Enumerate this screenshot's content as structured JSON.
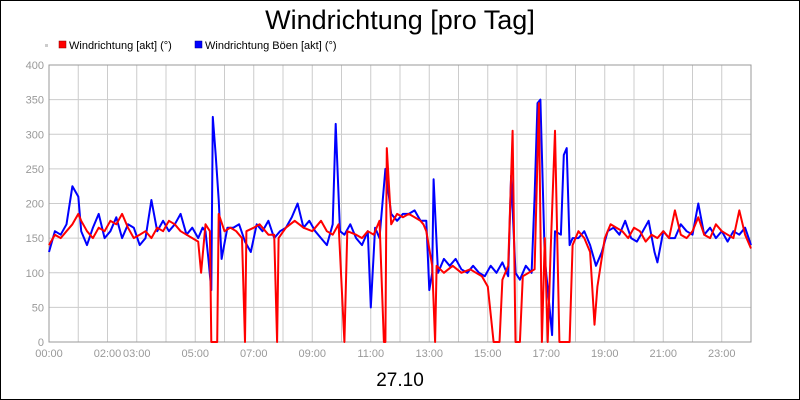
{
  "chart_data": {
    "type": "line",
    "title": "Windrichtung [pro Tag]",
    "xlabel": "27.10",
    "ylabel": "",
    "ylim": [
      0,
      400
    ],
    "yticks": [
      0,
      50,
      100,
      150,
      200,
      250,
      300,
      350,
      400
    ],
    "xticks": [
      {
        "h": 0,
        "label": "00:00"
      },
      {
        "h": 2,
        "label": "02:00"
      },
      {
        "h": 3,
        "label": "03:00"
      },
      {
        "h": 5,
        "label": "05:00"
      },
      {
        "h": 7,
        "label": "07:00"
      },
      {
        "h": 9,
        "label": "09:00"
      },
      {
        "h": 11,
        "label": "11:00"
      },
      {
        "h": 13,
        "label": "13:00"
      },
      {
        "h": 15,
        "label": "15:00"
      },
      {
        "h": 17,
        "label": "17:00"
      },
      {
        "h": 19,
        "label": "19:00"
      },
      {
        "h": 21,
        "label": "21:00"
      },
      {
        "h": 23,
        "label": "23:00"
      }
    ],
    "xlim": [
      0,
      24
    ],
    "grid": true,
    "legend_position": "top-left",
    "series": [
      {
        "name": "Windrichtung [akt] (°)",
        "color": "#ff0000",
        "points": [
          [
            0.0,
            140
          ],
          [
            0.2,
            155
          ],
          [
            0.4,
            150
          ],
          [
            0.6,
            160
          ],
          [
            0.8,
            170
          ],
          [
            1.0,
            185
          ],
          [
            1.1,
            175
          ],
          [
            1.3,
            160
          ],
          [
            1.5,
            150
          ],
          [
            1.7,
            165
          ],
          [
            1.9,
            160
          ],
          [
            2.1,
            175
          ],
          [
            2.3,
            170
          ],
          [
            2.5,
            185
          ],
          [
            2.7,
            165
          ],
          [
            2.9,
            150
          ],
          [
            3.1,
            155
          ],
          [
            3.3,
            160
          ],
          [
            3.5,
            150
          ],
          [
            3.7,
            165
          ],
          [
            3.9,
            160
          ],
          [
            4.1,
            175
          ],
          [
            4.3,
            170
          ],
          [
            4.5,
            160
          ],
          [
            4.7,
            155
          ],
          [
            4.9,
            150
          ],
          [
            5.1,
            145
          ],
          [
            5.2,
            100
          ],
          [
            5.35,
            170
          ],
          [
            5.5,
            160
          ],
          [
            5.55,
            0
          ],
          [
            5.75,
            0
          ],
          [
            5.8,
            185
          ],
          [
            6.0,
            160
          ],
          [
            6.2,
            165
          ],
          [
            6.4,
            160
          ],
          [
            6.6,
            150
          ],
          [
            6.7,
            0
          ],
          [
            6.75,
            160
          ],
          [
            7.0,
            165
          ],
          [
            7.2,
            170
          ],
          [
            7.5,
            155
          ],
          [
            7.7,
            155
          ],
          [
            7.8,
            0
          ],
          [
            7.85,
            150
          ],
          [
            8.1,
            165
          ],
          [
            8.4,
            175
          ],
          [
            8.7,
            165
          ],
          [
            9.0,
            160
          ],
          [
            9.3,
            175
          ],
          [
            9.5,
            160
          ],
          [
            9.7,
            155
          ],
          [
            9.9,
            170
          ],
          [
            10.1,
            0
          ],
          [
            10.2,
            160
          ],
          [
            10.5,
            155
          ],
          [
            10.7,
            150
          ],
          [
            10.9,
            160
          ],
          [
            11.1,
            155
          ],
          [
            11.3,
            175
          ],
          [
            11.45,
            0
          ],
          [
            11.5,
            0
          ],
          [
            11.55,
            280
          ],
          [
            11.7,
            170
          ],
          [
            11.9,
            185
          ],
          [
            12.1,
            180
          ],
          [
            12.3,
            185
          ],
          [
            12.5,
            180
          ],
          [
            12.7,
            175
          ],
          [
            12.8,
            170
          ],
          [
            12.9,
            160
          ],
          [
            13.1,
            110
          ],
          [
            13.2,
            0
          ],
          [
            13.25,
            110
          ],
          [
            13.5,
            100
          ],
          [
            13.8,
            110
          ],
          [
            14.1,
            100
          ],
          [
            14.4,
            105
          ],
          [
            14.6,
            100
          ],
          [
            14.8,
            95
          ],
          [
            15.0,
            80
          ],
          [
            15.2,
            0
          ],
          [
            15.4,
            0
          ],
          [
            15.5,
            90
          ],
          [
            15.7,
            110
          ],
          [
            15.85,
            305
          ],
          [
            15.95,
            0
          ],
          [
            16.1,
            0
          ],
          [
            16.2,
            95
          ],
          [
            16.4,
            100
          ],
          [
            16.6,
            105
          ],
          [
            16.75,
            345
          ],
          [
            16.85,
            0
          ],
          [
            16.95,
            150
          ],
          [
            17.05,
            0
          ],
          [
            17.15,
            130
          ],
          [
            17.3,
            305
          ],
          [
            17.45,
            0
          ],
          [
            17.6,
            0
          ],
          [
            17.8,
            0
          ],
          [
            17.9,
            140
          ],
          [
            18.1,
            160
          ],
          [
            18.3,
            150
          ],
          [
            18.5,
            130
          ],
          [
            18.65,
            25
          ],
          [
            18.75,
            80
          ],
          [
            19.0,
            150
          ],
          [
            19.2,
            170
          ],
          [
            19.4,
            165
          ],
          [
            19.6,
            160
          ],
          [
            19.8,
            150
          ],
          [
            20.0,
            165
          ],
          [
            20.2,
            160
          ],
          [
            20.4,
            145
          ],
          [
            20.6,
            155
          ],
          [
            20.8,
            150
          ],
          [
            21.0,
            160
          ],
          [
            21.2,
            150
          ],
          [
            21.4,
            190
          ],
          [
            21.6,
            155
          ],
          [
            21.8,
            150
          ],
          [
            22.0,
            160
          ],
          [
            22.2,
            180
          ],
          [
            22.4,
            155
          ],
          [
            22.6,
            150
          ],
          [
            22.8,
            170
          ],
          [
            23.0,
            160
          ],
          [
            23.2,
            155
          ],
          [
            23.4,
            150
          ],
          [
            23.6,
            190
          ],
          [
            23.8,
            155
          ],
          [
            24.0,
            135
          ]
        ]
      },
      {
        "name": "Windrichtung Böen [akt] (°)",
        "color": "#0000ff",
        "points": [
          [
            0.0,
            130
          ],
          [
            0.2,
            160
          ],
          [
            0.4,
            155
          ],
          [
            0.6,
            170
          ],
          [
            0.8,
            225
          ],
          [
            1.0,
            210
          ],
          [
            1.1,
            160
          ],
          [
            1.3,
            140
          ],
          [
            1.5,
            165
          ],
          [
            1.7,
            185
          ],
          [
            1.9,
            150
          ],
          [
            2.1,
            160
          ],
          [
            2.3,
            180
          ],
          [
            2.5,
            150
          ],
          [
            2.7,
            170
          ],
          [
            2.9,
            165
          ],
          [
            3.1,
            140
          ],
          [
            3.3,
            150
          ],
          [
            3.5,
            205
          ],
          [
            3.7,
            160
          ],
          [
            3.9,
            175
          ],
          [
            4.1,
            160
          ],
          [
            4.3,
            170
          ],
          [
            4.5,
            185
          ],
          [
            4.7,
            155
          ],
          [
            4.9,
            165
          ],
          [
            5.1,
            150
          ],
          [
            5.25,
            165
          ],
          [
            5.35,
            160
          ],
          [
            5.45,
            120
          ],
          [
            5.55,
            75
          ],
          [
            5.6,
            325
          ],
          [
            5.7,
            270
          ],
          [
            5.8,
            205
          ],
          [
            5.9,
            120
          ],
          [
            6.1,
            165
          ],
          [
            6.3,
            165
          ],
          [
            6.5,
            170
          ],
          [
            6.7,
            145
          ],
          [
            6.9,
            130
          ],
          [
            7.1,
            170
          ],
          [
            7.3,
            160
          ],
          [
            7.5,
            175
          ],
          [
            7.7,
            150
          ],
          [
            7.9,
            160
          ],
          [
            8.1,
            165
          ],
          [
            8.3,
            180
          ],
          [
            8.5,
            200
          ],
          [
            8.7,
            165
          ],
          [
            8.9,
            175
          ],
          [
            9.1,
            160
          ],
          [
            9.3,
            150
          ],
          [
            9.5,
            140
          ],
          [
            9.7,
            170
          ],
          [
            9.8,
            315
          ],
          [
            9.95,
            160
          ],
          [
            10.1,
            155
          ],
          [
            10.3,
            170
          ],
          [
            10.5,
            150
          ],
          [
            10.7,
            140
          ],
          [
            10.9,
            160
          ],
          [
            11.0,
            50
          ],
          [
            11.15,
            165
          ],
          [
            11.3,
            150
          ],
          [
            11.5,
            250
          ],
          [
            11.7,
            185
          ],
          [
            11.9,
            175
          ],
          [
            12.1,
            185
          ],
          [
            12.3,
            185
          ],
          [
            12.5,
            190
          ],
          [
            12.7,
            175
          ],
          [
            12.9,
            175
          ],
          [
            13.0,
            75
          ],
          [
            13.1,
            100
          ],
          [
            13.15,
            235
          ],
          [
            13.3,
            100
          ],
          [
            13.5,
            120
          ],
          [
            13.7,
            110
          ],
          [
            13.9,
            120
          ],
          [
            14.1,
            105
          ],
          [
            14.3,
            100
          ],
          [
            14.5,
            110
          ],
          [
            14.7,
            100
          ],
          [
            14.9,
            95
          ],
          [
            15.1,
            110
          ],
          [
            15.3,
            100
          ],
          [
            15.5,
            115
          ],
          [
            15.7,
            95
          ],
          [
            15.8,
            240
          ],
          [
            15.95,
            100
          ],
          [
            16.1,
            90
          ],
          [
            16.3,
            110
          ],
          [
            16.5,
            100
          ],
          [
            16.6,
            210
          ],
          [
            16.7,
            345
          ],
          [
            16.8,
            350
          ],
          [
            16.95,
            120
          ],
          [
            17.1,
            55
          ],
          [
            17.2,
            10
          ],
          [
            17.3,
            160
          ],
          [
            17.5,
            155
          ],
          [
            17.6,
            270
          ],
          [
            17.7,
            280
          ],
          [
            17.8,
            140
          ],
          [
            17.9,
            150
          ],
          [
            18.1,
            150
          ],
          [
            18.3,
            160
          ],
          [
            18.5,
            140
          ],
          [
            18.7,
            110
          ],
          [
            18.9,
            130
          ],
          [
            19.1,
            160
          ],
          [
            19.3,
            165
          ],
          [
            19.5,
            155
          ],
          [
            19.7,
            175
          ],
          [
            19.9,
            150
          ],
          [
            20.1,
            145
          ],
          [
            20.3,
            160
          ],
          [
            20.5,
            175
          ],
          [
            20.7,
            130
          ],
          [
            20.8,
            115
          ],
          [
            21.0,
            160
          ],
          [
            21.2,
            150
          ],
          [
            21.4,
            150
          ],
          [
            21.6,
            170
          ],
          [
            21.8,
            160
          ],
          [
            22.0,
            155
          ],
          [
            22.2,
            200
          ],
          [
            22.4,
            155
          ],
          [
            22.6,
            165
          ],
          [
            22.8,
            150
          ],
          [
            23.0,
            160
          ],
          [
            23.2,
            145
          ],
          [
            23.4,
            160
          ],
          [
            23.6,
            155
          ],
          [
            23.8,
            165
          ],
          [
            24.0,
            140
          ]
        ]
      }
    ]
  }
}
